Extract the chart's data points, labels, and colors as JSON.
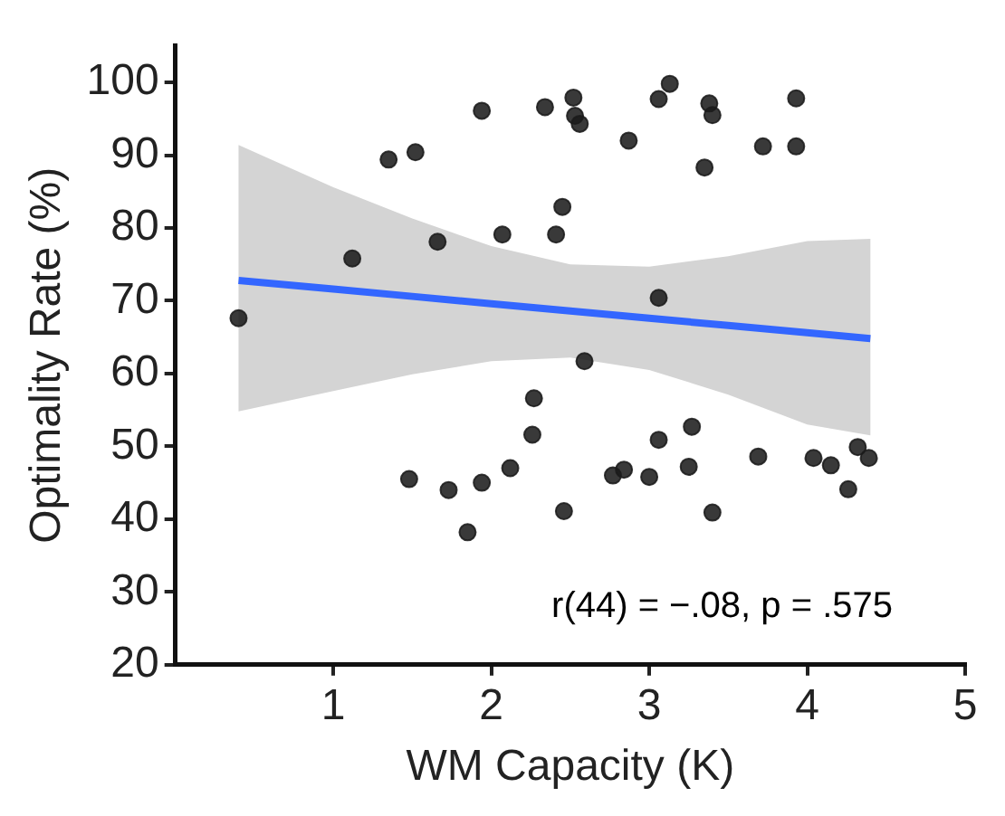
{
  "chart_data": {
    "type": "scatter",
    "xlabel": "WM Capacity (K)",
    "ylabel": "Optimality Rate (%)",
    "xlim": [
      0,
      5
    ],
    "ylim": [
      20,
      105
    ],
    "xticks": [
      1,
      2,
      3,
      4,
      5
    ],
    "yticks": [
      20,
      30,
      40,
      50,
      60,
      70,
      80,
      90,
      100
    ],
    "grid": false,
    "legend": false,
    "marker": "circle",
    "annotations": [
      "r(44) = −.08, p = .575"
    ],
    "series": [
      {
        "color": "#1a1a1a",
        "x": [
          0.4,
          1.12,
          1.35,
          1.52,
          1.66,
          1.94,
          2.07,
          2.34,
          2.45,
          2.41,
          1.48,
          1.73,
          1.85,
          1.94,
          2.12,
          2.26,
          2.27,
          2.46,
          2.52,
          2.53,
          2.56,
          2.59,
          2.87,
          3.06,
          3.13,
          3.38,
          3.4,
          3.35,
          3.72,
          3.93,
          3.93,
          3.06,
          2.77,
          2.84,
          3.0,
          3.06,
          3.27,
          3.25,
          3.4,
          3.69,
          4.04,
          4.15,
          4.32,
          4.39,
          4.26
        ],
        "values": [
          67.6,
          75.8,
          89.4,
          90.4,
          78.1,
          96.1,
          79.1,
          96.6,
          82.9,
          79.1,
          45.5,
          44.0,
          38.2,
          45.0,
          47.0,
          51.6,
          56.6,
          41.1,
          97.9,
          95.4,
          94.3,
          61.7,
          92.0,
          97.7,
          99.8,
          97.1,
          95.5,
          88.3,
          91.2,
          97.8,
          91.2,
          70.4,
          46.0,
          46.8,
          45.8,
          50.9,
          52.7,
          47.2,
          40.9,
          48.6,
          48.4,
          47.4,
          49.9,
          48.4,
          44.1
        ]
      },
      {
        "type": "line",
        "marker": "none",
        "color": "#3366ff",
        "x": [
          0.4,
          1.0,
          1.5,
          2.0,
          2.5,
          3.0,
          3.5,
          4.0,
          4.4
        ],
        "values": [
          72.8,
          71.6,
          70.6,
          69.6,
          68.6,
          67.6,
          66.6,
          65.6,
          64.8
        ],
        "lower": [
          54.8,
          57.6,
          59.9,
          61.7,
          62.2,
          60.5,
          57.1,
          53.0,
          51.5
        ],
        "upper": [
          91.4,
          85.6,
          81.3,
          77.5,
          75.0,
          74.7,
          76.1,
          78.2,
          78.5
        ]
      }
    ]
  }
}
